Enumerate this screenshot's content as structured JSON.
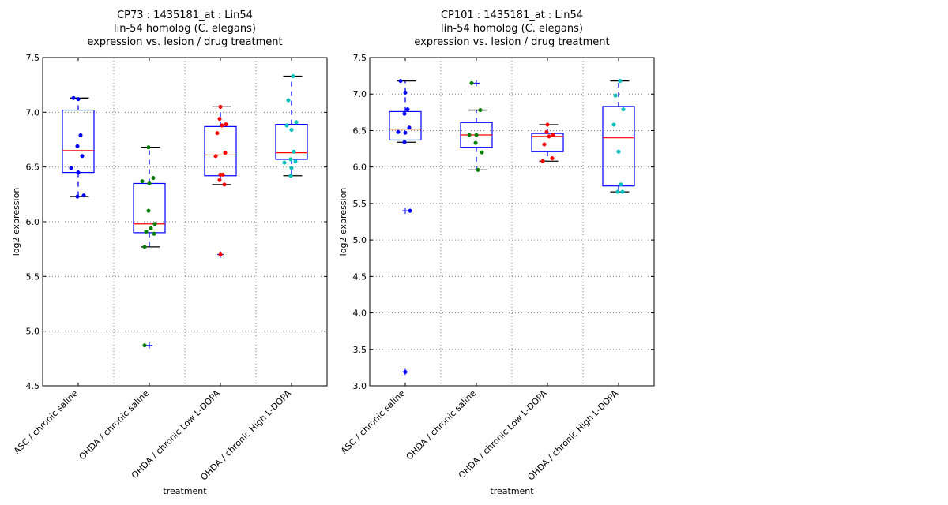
{
  "chart_data": [
    {
      "type": "box",
      "title_lines": [
        "CP73 : 1435181_at : Lin54",
        "lin-54 homolog (C. elegans)",
        "expression vs. lesion / drug treatment"
      ],
      "xlabel": "treatment",
      "ylabel": "log2 expression",
      "ylim": [
        4.5,
        7.5
      ],
      "yticks": [
        4.5,
        5.0,
        5.5,
        6.0,
        6.5,
        7.0,
        7.5
      ],
      "ytick_labels": [
        "4.5",
        "5.0",
        "5.5",
        "6.0",
        "6.5",
        "7.0",
        "7.5"
      ],
      "grid": true,
      "categories": [
        "ASC / chronic saline",
        "OHDA / chronic saline",
        "OHDA / chronic Low L-DOPA",
        "OHDA / chronic High L-DOPA"
      ],
      "groups": [
        {
          "name": "ASC / chronic saline",
          "color": "#0000ff",
          "q1": 6.45,
          "median": 6.65,
          "q3": 7.02,
          "whisker_low": 6.23,
          "whisker_high": 7.13,
          "fliers": [],
          "points": [
            7.13,
            7.12,
            6.79,
            6.69,
            6.6,
            6.49,
            6.45,
            6.23,
            6.24
          ]
        },
        {
          "name": "OHDA / chronic saline",
          "color": "#008000",
          "q1": 5.9,
          "median": 5.98,
          "q3": 6.35,
          "whisker_low": 5.77,
          "whisker_high": 6.68,
          "fliers": [
            4.87
          ],
          "points": [
            6.68,
            6.4,
            6.37,
            6.35,
            6.1,
            5.98,
            5.94,
            5.91,
            5.89,
            5.77,
            4.87
          ]
        },
        {
          "name": "OHDA / chronic Low L-DOPA",
          "color": "#ff0000",
          "q1": 6.42,
          "median": 6.61,
          "q3": 6.87,
          "whisker_low": 6.34,
          "whisker_high": 7.05,
          "fliers": [
            5.7
          ],
          "points": [
            7.05,
            6.94,
            6.89,
            6.88,
            6.81,
            6.63,
            6.6,
            6.43,
            6.43,
            6.38,
            6.34,
            5.7
          ]
        },
        {
          "name": "OHDA / chronic High L-DOPA",
          "color": "#00bfbf",
          "q1": 6.57,
          "median": 6.63,
          "q3": 6.89,
          "whisker_low": 6.42,
          "whisker_high": 7.33,
          "fliers": [],
          "points": [
            7.33,
            7.11,
            6.91,
            6.88,
            6.84,
            6.64,
            6.57,
            6.55,
            6.54,
            6.49,
            6.42
          ]
        }
      ]
    },
    {
      "type": "box",
      "title_lines": [
        "CP101 : 1435181_at : Lin54",
        "lin-54 homolog (C. elegans)",
        "expression vs. lesion / drug treatment"
      ],
      "xlabel": "treatment",
      "ylabel": "log2 expression",
      "ylim": [
        3.0,
        7.5
      ],
      "yticks": [
        3.0,
        3.5,
        4.0,
        4.5,
        5.0,
        5.5,
        6.0,
        6.5,
        7.0,
        7.5
      ],
      "ytick_labels": [
        "3.0",
        "3.5",
        "4.0",
        "4.5",
        "5.0",
        "5.5",
        "6.0",
        "6.5",
        "7.0",
        "7.5"
      ],
      "grid": true,
      "categories": [
        "ASC / chronic saline",
        "OHDA / chronic saline",
        "OHDA / chronic Low L-DOPA",
        "OHDA / chronic High L-DOPA"
      ],
      "groups": [
        {
          "name": "ASC / chronic saline",
          "color": "#0000ff",
          "q1": 6.37,
          "median": 6.52,
          "q3": 6.76,
          "whisker_low": 6.34,
          "whisker_high": 7.18,
          "fliers": [
            5.4,
            3.19
          ],
          "points": [
            7.18,
            7.02,
            6.79,
            6.73,
            6.54,
            6.48,
            6.47,
            6.34,
            5.4,
            3.19
          ]
        },
        {
          "name": "OHDA / chronic saline",
          "color": "#008000",
          "q1": 6.27,
          "median": 6.44,
          "q3": 6.61,
          "whisker_low": 5.96,
          "whisker_high": 6.78,
          "fliers": [
            7.15
          ],
          "points": [
            7.15,
            6.78,
            6.44,
            6.44,
            6.33,
            6.2,
            5.96
          ]
        },
        {
          "name": "OHDA / chronic Low L-DOPA",
          "color": "#ff0000",
          "q1": 6.21,
          "median": 6.42,
          "q3": 6.46,
          "whisker_low": 6.08,
          "whisker_high": 6.58,
          "fliers": [],
          "points": [
            6.58,
            6.48,
            6.44,
            6.42,
            6.31,
            6.12,
            6.08
          ]
        },
        {
          "name": "OHDA / chronic High L-DOPA",
          "color": "#00bfbf",
          "q1": 5.74,
          "median": 6.4,
          "q3": 6.83,
          "whisker_low": 5.66,
          "whisker_high": 7.18,
          "fliers": [],
          "points": [
            7.18,
            6.98,
            6.79,
            6.58,
            6.21,
            5.76,
            5.66,
            5.66
          ]
        }
      ]
    }
  ]
}
